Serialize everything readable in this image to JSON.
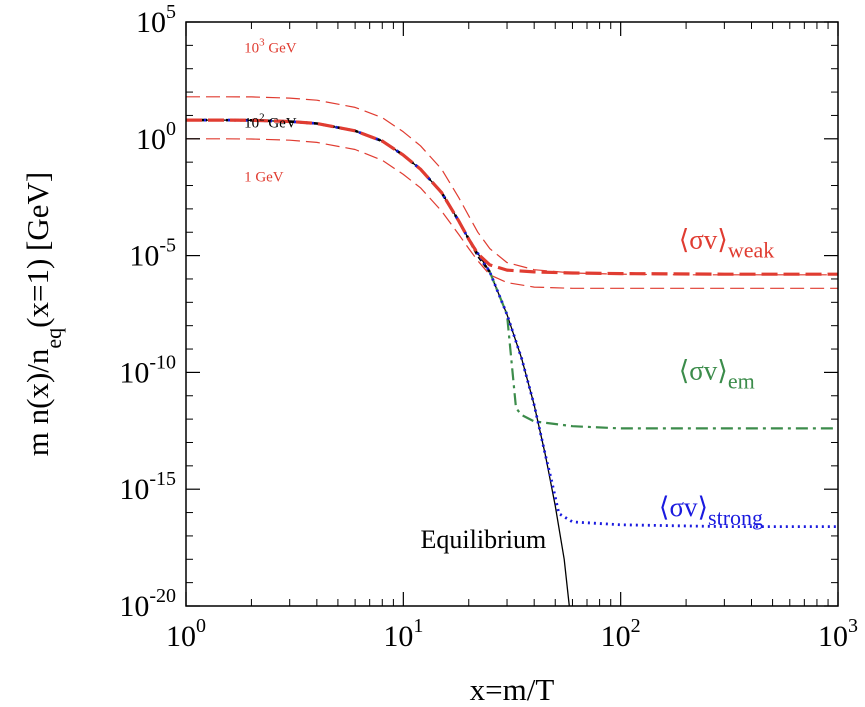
{
  "chart_data": {
    "type": "line",
    "xlabel": "x=m/T",
    "ylabel": "m n(x)/n_eq(x=1) [GeV]",
    "ylabel_parts": {
      "main": "m n(x)/n",
      "sub": "eq",
      "rest": "(x=1) [GeV]"
    },
    "xscale": "log",
    "yscale": "log",
    "xlim": [
      1,
      1000
    ],
    "ylim": [
      1e-20,
      100000.0
    ],
    "grid": false,
    "legend": "none",
    "x_ticks": [
      {
        "value": 1,
        "base": "10",
        "exp": "0"
      },
      {
        "value": 10,
        "base": "10",
        "exp": "1"
      },
      {
        "value": 100,
        "base": "10",
        "exp": "2"
      },
      {
        "value": 1000,
        "base": "10",
        "exp": "3"
      }
    ],
    "y_ticks": [
      {
        "value": 1e-20,
        "base": "10",
        "exp": "-20"
      },
      {
        "value": 1e-15,
        "base": "10",
        "exp": "-15"
      },
      {
        "value": 1e-10,
        "base": "10",
        "exp": "-10"
      },
      {
        "value": 1e-05,
        "base": "10",
        "exp": "-5"
      },
      {
        "value": 1,
        "base": "10",
        "exp": "0"
      },
      {
        "value": 100000.0,
        "base": "10",
        "exp": "5"
      }
    ],
    "series": [
      {
        "label_base": "10",
        "label_exp": "3",
        "label_unit": "GeV",
        "color": "#e03c31",
        "style": "dashed-thin",
        "label_at": {
          "x": 1.85,
          "y": 5000
        },
        "points": [
          [
            1,
            63
          ],
          [
            1.5,
            63
          ],
          [
            2,
            62
          ],
          [
            3,
            55
          ],
          [
            4,
            45
          ],
          [
            6,
            22
          ],
          [
            8,
            8
          ],
          [
            10,
            2
          ],
          [
            12,
            0.5
          ],
          [
            15,
            0.05
          ],
          [
            18,
            0.003
          ],
          [
            20,
            0.0005
          ],
          [
            22,
            0.0001
          ],
          [
            25,
            2e-05
          ],
          [
            30,
            5e-06
          ],
          [
            40,
            2.5e-06
          ],
          [
            60,
            1.8e-06
          ],
          [
            100,
            1.6e-06
          ],
          [
            200,
            1.5e-06
          ],
          [
            400,
            1.5e-06
          ],
          [
            1000,
            1.5e-06
          ]
        ]
      },
      {
        "label_base": "10",
        "label_exp": "2",
        "label_unit": "GeV",
        "color": "#000000",
        "style": "dashed-black",
        "label_at": {
          "x": 1.85,
          "y": 3
        },
        "points": [
          [
            1,
            6.3
          ],
          [
            1.5,
            6.3
          ],
          [
            2,
            6.2
          ],
          [
            3,
            5.5
          ],
          [
            4,
            4.5
          ],
          [
            6,
            2.2
          ],
          [
            8,
            0.8
          ],
          [
            10,
            0.2
          ],
          [
            12,
            0.05
          ],
          [
            15,
            0.005
          ],
          [
            18,
            0.0003
          ],
          [
            20,
            5e-05
          ],
          [
            22,
            1e-05
          ],
          [
            25,
            2e-06
          ]
        ]
      },
      {
        "label_base": "",
        "label_exp": "",
        "label_unit": "1 GeV",
        "color": "#e03c31",
        "style": "dashed-thin",
        "label_at": {
          "x": 1.85,
          "y": 0.015
        },
        "points": [
          [
            1,
            1
          ],
          [
            1.5,
            1
          ],
          [
            2,
            0.98
          ],
          [
            3,
            0.87
          ],
          [
            4,
            0.7
          ],
          [
            6,
            0.35
          ],
          [
            8,
            0.12
          ],
          [
            10,
            0.03
          ],
          [
            12,
            0.008
          ],
          [
            15,
            0.0008
          ],
          [
            18,
            8e-05
          ],
          [
            20,
            2e-05
          ],
          [
            22,
            6e-06
          ],
          [
            25,
            1.5e-06
          ],
          [
            30,
            7e-07
          ],
          [
            40,
            4.5e-07
          ],
          [
            60,
            4e-07
          ],
          [
            100,
            4e-07
          ],
          [
            300,
            4e-07
          ],
          [
            1000,
            4e-07
          ]
        ]
      },
      {
        "name": "Equilibrium",
        "color": "#000000",
        "style": "solid",
        "label_at": {
          "x": 12,
          "y": 3e-18
        },
        "points": [
          [
            1,
            6.3
          ],
          [
            1.5,
            6.3
          ],
          [
            2,
            6.2
          ],
          [
            3,
            5.5
          ],
          [
            4,
            4.5
          ],
          [
            6,
            2.2
          ],
          [
            8,
            0.8
          ],
          [
            10,
            0.2
          ],
          [
            12,
            0.05
          ],
          [
            15,
            0.005
          ],
          [
            18,
            0.0003
          ],
          [
            20,
            5e-05
          ],
          [
            25,
            2e-06
          ],
          [
            30,
            3e-08
          ],
          [
            35,
            4e-10
          ],
          [
            40,
            4e-12
          ],
          [
            45,
            3e-14
          ],
          [
            50,
            2e-16
          ],
          [
            55,
            1e-18
          ],
          [
            58,
            1e-20
          ]
        ]
      },
      {
        "label": "σv",
        "label_sub": "weak",
        "color": "#e03c31",
        "style": "dashed-thick",
        "label_at": {
          "x": 185,
          "y": 2e-05
        },
        "points": [
          [
            1,
            6.3
          ],
          [
            1.5,
            6.3
          ],
          [
            2,
            6.2
          ],
          [
            3,
            5.5
          ],
          [
            4,
            4.5
          ],
          [
            6,
            2.2
          ],
          [
            8,
            0.8
          ],
          [
            10,
            0.2
          ],
          [
            12,
            0.05
          ],
          [
            15,
            0.005
          ],
          [
            18,
            0.0003
          ],
          [
            20,
            5e-05
          ],
          [
            22,
            1.2e-05
          ],
          [
            25,
            4e-06
          ],
          [
            30,
            2.4e-06
          ],
          [
            40,
            2e-06
          ],
          [
            60,
            1.8e-06
          ],
          [
            100,
            1.7e-06
          ],
          [
            300,
            1.6e-06
          ],
          [
            1000,
            1.6e-06
          ]
        ]
      },
      {
        "label": "σv",
        "label_sub": "em",
        "color": "#3c8c4b",
        "style": "dashdot",
        "label_at": {
          "x": 185,
          "y": 5e-11
        },
        "points": [
          [
            25,
            2e-06
          ],
          [
            30,
            3e-08
          ],
          [
            33,
            3e-12
          ],
          [
            35,
            1.5e-12
          ],
          [
            40,
            8e-13
          ],
          [
            60,
            5e-13
          ],
          [
            100,
            4e-13
          ],
          [
            300,
            4e-13
          ],
          [
            1000,
            4e-13
          ]
        ]
      },
      {
        "label": "σv",
        "label_sub": "strong",
        "color": "#1a1adf",
        "style": "dotted",
        "label_at": {
          "x": 150,
          "y": 7e-17
        },
        "points": [
          [
            1,
            6.3
          ],
          [
            1.5,
            6.3
          ],
          [
            2,
            6.2
          ],
          [
            3,
            5.5
          ],
          [
            4,
            4.5
          ],
          [
            6,
            2.2
          ],
          [
            8,
            0.8
          ],
          [
            10,
            0.2
          ],
          [
            12,
            0.05
          ],
          [
            15,
            0.005
          ],
          [
            18,
            0.0003
          ],
          [
            20,
            5e-05
          ],
          [
            25,
            2e-06
          ],
          [
            30,
            3e-08
          ],
          [
            35,
            4e-10
          ],
          [
            40,
            4e-12
          ],
          [
            45,
            3e-14
          ],
          [
            48,
            2.5e-15
          ],
          [
            52,
            9e-17
          ],
          [
            60,
            4e-17
          ],
          [
            100,
            3e-17
          ],
          [
            300,
            2.5e-17
          ],
          [
            1000,
            2.5e-17
          ]
        ]
      }
    ]
  }
}
